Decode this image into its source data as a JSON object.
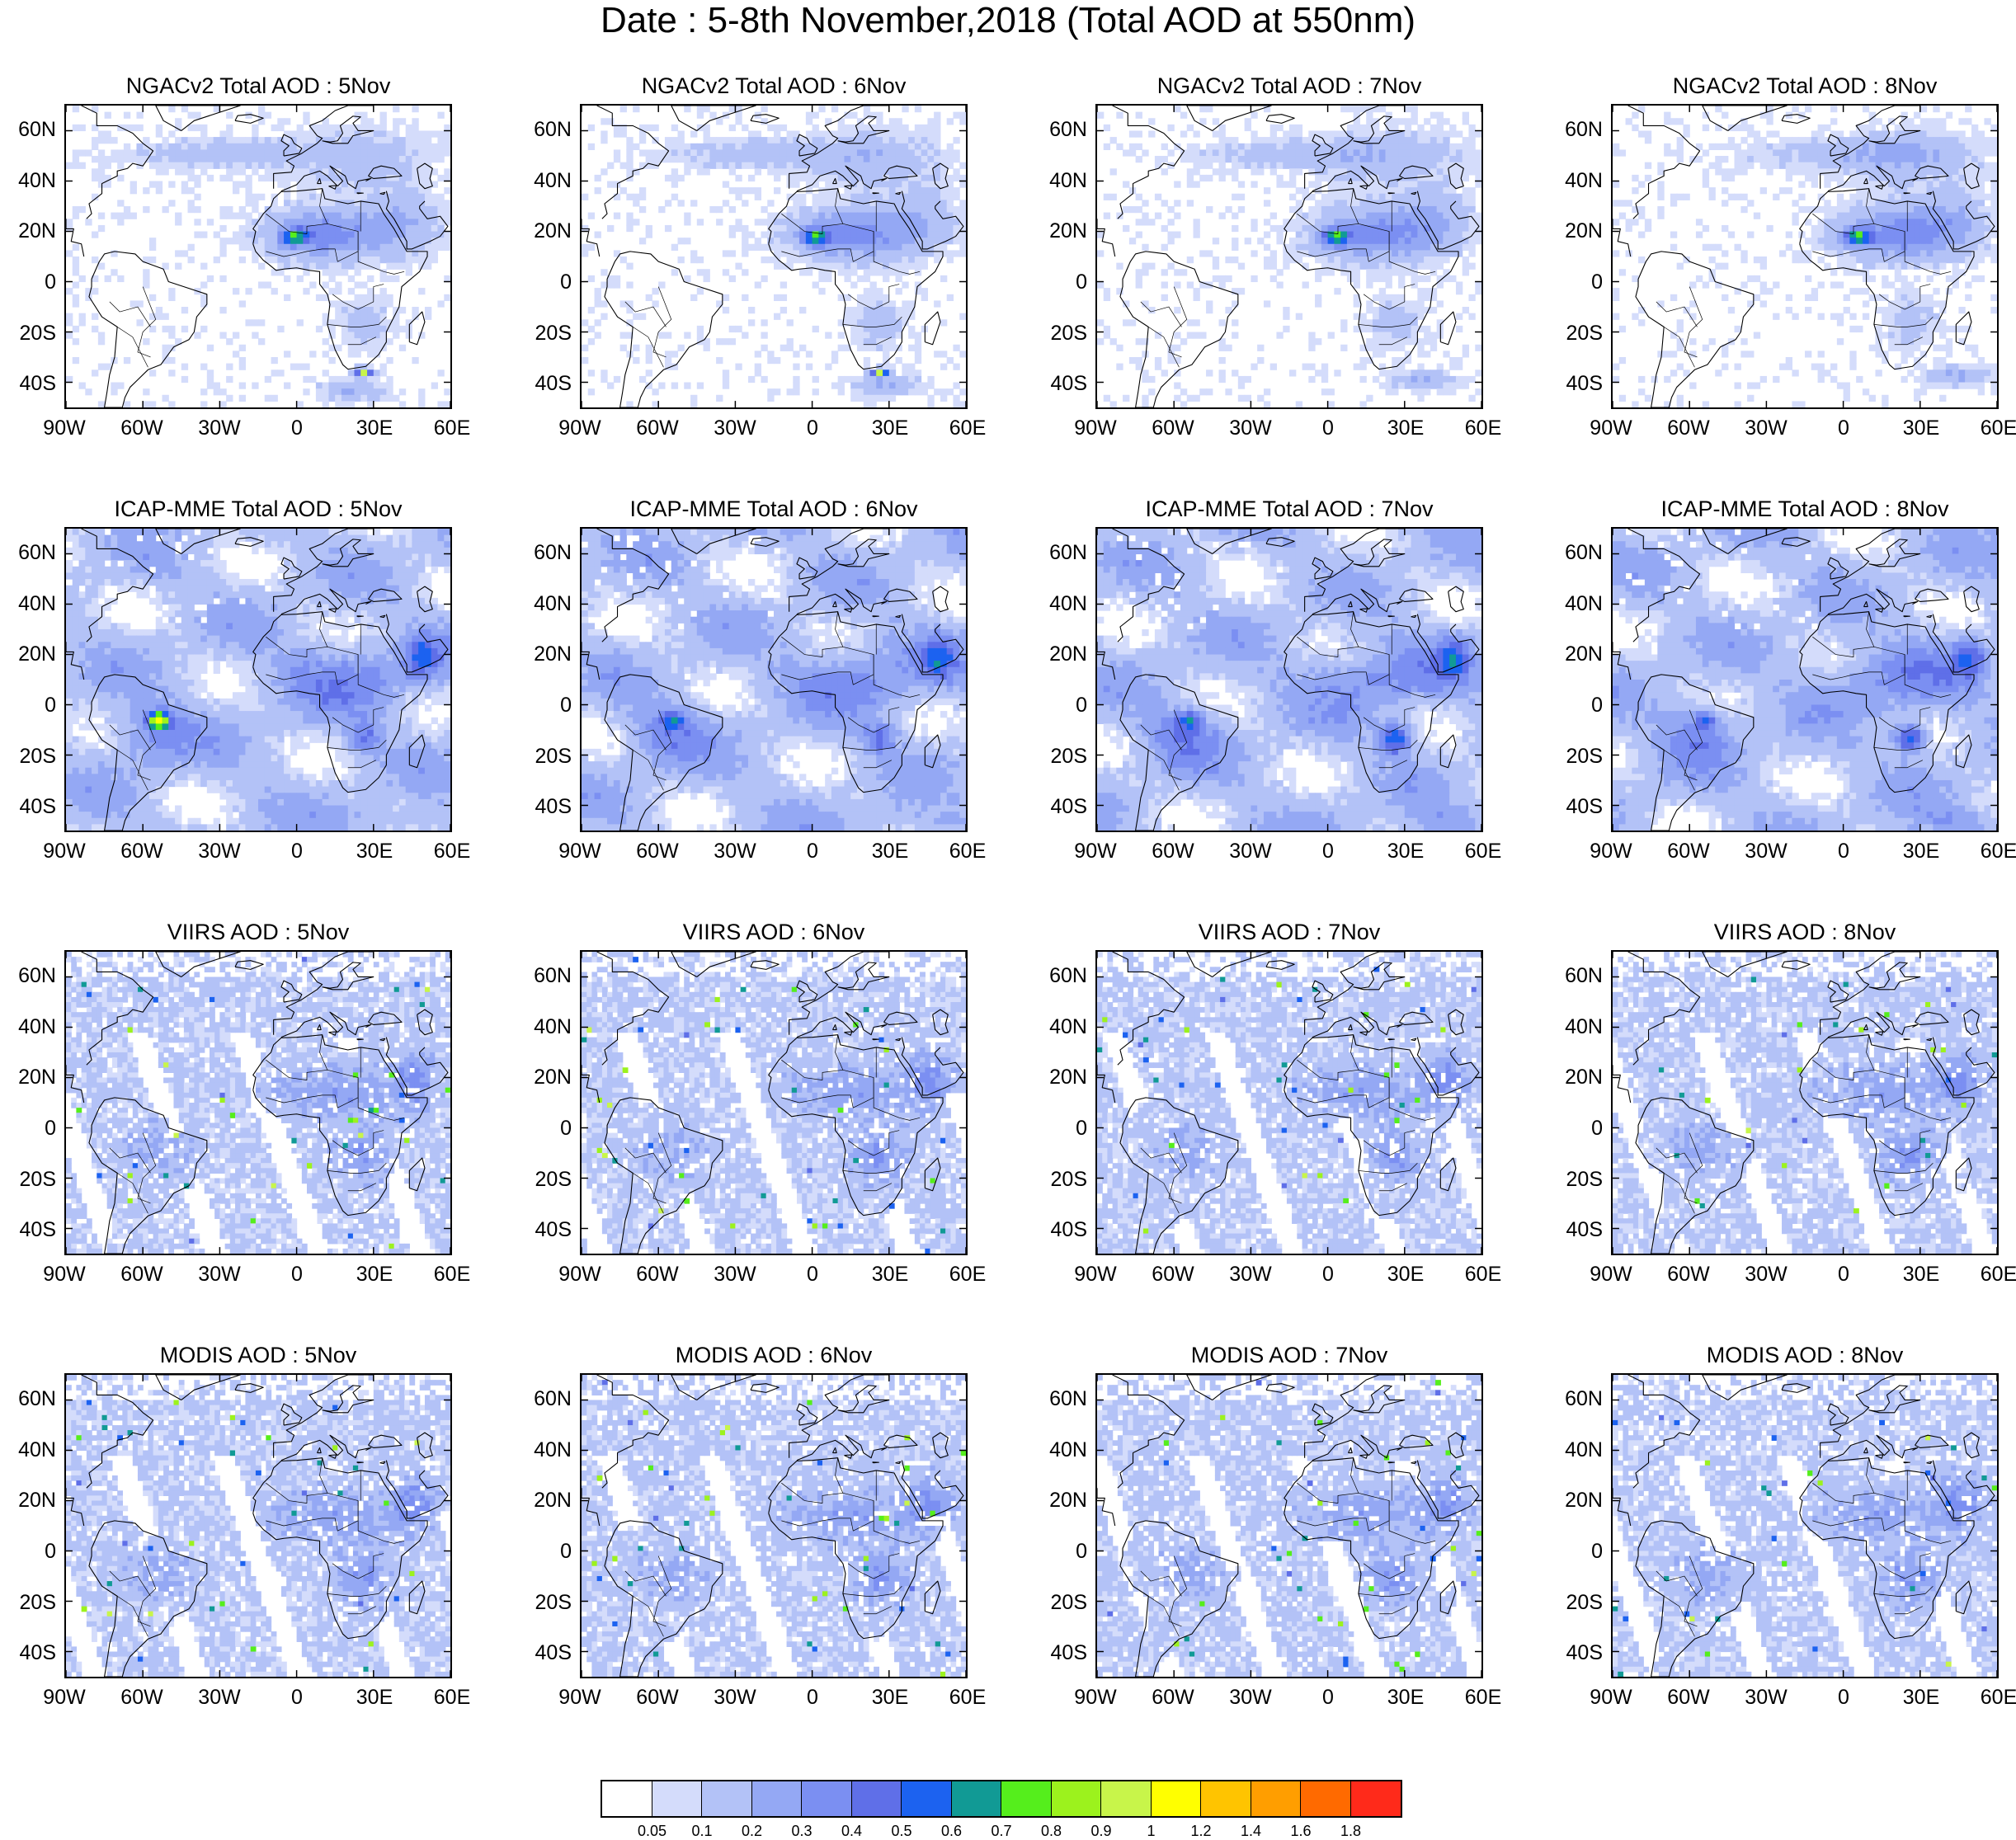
{
  "title": "Date : 5-8th November,2018 (Total AOD at 550nm)",
  "lat_ticks": [
    "60N",
    "40N",
    "20N",
    "0",
    "20S",
    "40S"
  ],
  "lon_ticks": [
    "90W",
    "60W",
    "30W",
    "0",
    "30E",
    "60E"
  ],
  "rows": [
    {
      "kind": "model",
      "panels": [
        "NGACv2 Total AOD : 5Nov",
        "NGACv2 Total AOD : 6Nov",
        "NGACv2 Total AOD : 7Nov",
        "NGACv2 Total AOD : 8Nov"
      ]
    },
    {
      "kind": "ens",
      "panels": [
        "ICAP-MME Total AOD : 5Nov",
        "ICAP-MME Total AOD : 6Nov",
        "ICAP-MME Total AOD : 7Nov",
        "ICAP-MME Total AOD : 8Nov"
      ]
    },
    {
      "kind": "sat",
      "panels": [
        "VIIRS AOD : 5Nov",
        "VIIRS AOD : 6Nov",
        "VIIRS AOD : 7Nov",
        "VIIRS AOD : 8Nov"
      ]
    },
    {
      "kind": "sat",
      "panels": [
        "MODIS AOD : 5Nov",
        "MODIS AOD : 6Nov",
        "MODIS AOD : 7Nov",
        "MODIS AOD : 8Nov"
      ]
    }
  ],
  "colorbar": {
    "labels": [
      "0.05",
      "0.1",
      "0.2",
      "0.3",
      "0.4",
      "0.5",
      "0.6",
      "0.7",
      "0.8",
      "0.9",
      "1",
      "1.2",
      "1.4",
      "1.6",
      "1.8"
    ],
    "colors": [
      "#ffffff",
      "#d4dcfb",
      "#b3c2f7",
      "#94a8f4",
      "#7b8ff2",
      "#5f6fe8",
      "#1c62f0",
      "#119a95",
      "#55ee1c",
      "#9cf21d",
      "#c8f54a",
      "#ffff00",
      "#ffc400",
      "#ff9e00",
      "#ff6a00",
      "#ff2a1a"
    ]
  }
}
